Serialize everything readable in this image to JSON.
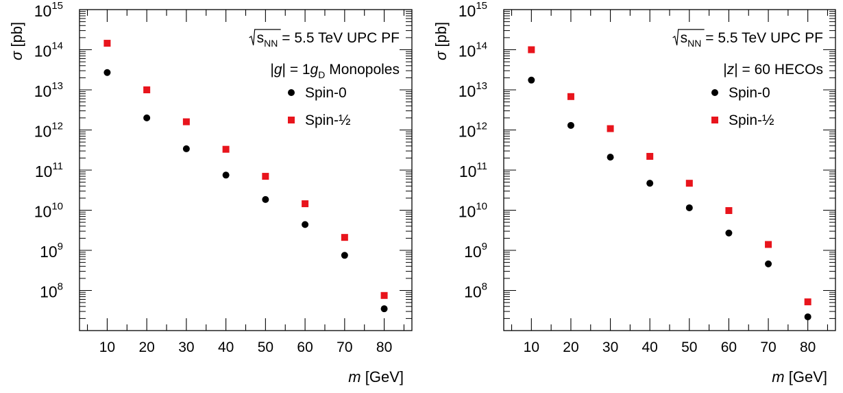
{
  "colors": {
    "spin0": "#000000",
    "spin_half": "#e8141c",
    "axis": "#000000"
  },
  "chart_data": [
    {
      "type": "scatter",
      "scale": {
        "y": "log"
      },
      "xlim": [
        3,
        87
      ],
      "ylim": [
        7,
        15
      ],
      "x": [
        10,
        20,
        30,
        40,
        50,
        60,
        70,
        80
      ],
      "x_ticks": [
        "10",
        "20",
        "30",
        "40",
        "50",
        "60",
        "70",
        "80"
      ],
      "y_ticks": [
        {
          "base": "10",
          "exp": "8"
        },
        {
          "base": "10",
          "exp": "9"
        },
        {
          "base": "10",
          "exp": "10"
        },
        {
          "base": "10",
          "exp": "11"
        },
        {
          "base": "10",
          "exp": "12"
        },
        {
          "base": "10",
          "exp": "13"
        },
        {
          "base": "10",
          "exp": "14"
        },
        {
          "base": "10",
          "exp": "15"
        }
      ],
      "ylabel": {
        "symbol": "σ",
        "unit": "[pb]"
      },
      "xlabel": {
        "symbol": "m",
        "unit": "[GeV]"
      },
      "annotation": {
        "sqrt_arg": "s",
        "sqrt_sub": "NN",
        "rest": "= 5.5 TeV UPC PF"
      },
      "annotation2": {
        "pre": "|",
        "var": "g",
        "mid": "| = 1",
        "var2": "g",
        "sub": "D",
        "post": " Monopoles"
      },
      "legend_position": "top-right",
      "series": [
        {
          "name": "Spin-0",
          "marker": "circle",
          "values": [
            27000000000000.0,
            2000000000000.0,
            340000000000.0,
            75000000000.0,
            18500000000.0,
            4400000000.0,
            750000000.0,
            35000000.0
          ]
        },
        {
          "name": "Spin-½",
          "marker": "square",
          "values": [
            145000000000000.0,
            10000000000000.0,
            1600000000000.0,
            330000000000.0,
            70000000000.0,
            14500000000.0,
            2100000000.0,
            75000000.0
          ]
        }
      ]
    },
    {
      "type": "scatter",
      "scale": {
        "y": "log"
      },
      "xlim": [
        3,
        87
      ],
      "ylim": [
        7,
        15
      ],
      "x": [
        10,
        20,
        30,
        40,
        50,
        60,
        70,
        80
      ],
      "x_ticks": [
        "10",
        "20",
        "30",
        "40",
        "50",
        "60",
        "70",
        "80"
      ],
      "y_ticks": [
        {
          "base": "10",
          "exp": "8"
        },
        {
          "base": "10",
          "exp": "9"
        },
        {
          "base": "10",
          "exp": "10"
        },
        {
          "base": "10",
          "exp": "11"
        },
        {
          "base": "10",
          "exp": "12"
        },
        {
          "base": "10",
          "exp": "13"
        },
        {
          "base": "10",
          "exp": "14"
        },
        {
          "base": "10",
          "exp": "15"
        }
      ],
      "ylabel": {
        "symbol": "σ",
        "unit": "[pb]"
      },
      "xlabel": {
        "symbol": "m",
        "unit": "[GeV]"
      },
      "annotation": {
        "sqrt_arg": "s",
        "sqrt_sub": "NN",
        "rest": "= 5.5 TeV UPC PF"
      },
      "annotation2": {
        "pre": "|",
        "var": "z",
        "mid": "| = 60 HECOs",
        "var2": "",
        "sub": "",
        "post": ""
      },
      "legend_position": "top-right",
      "series": [
        {
          "name": "Spin-0",
          "marker": "circle",
          "values": [
            17500000000000.0,
            1300000000000.0,
            210000000000.0,
            47000000000.0,
            11500000000.0,
            2700000000.0,
            460000000.0,
            22000000.0
          ]
        },
        {
          "name": "Spin-½",
          "marker": "square",
          "values": [
            100000000000000.0,
            6800000000000.0,
            1080000000000.0,
            220000000000.0,
            47000000000.0,
            9800000000.0,
            1400000000.0,
            52000000.0
          ]
        }
      ]
    }
  ]
}
